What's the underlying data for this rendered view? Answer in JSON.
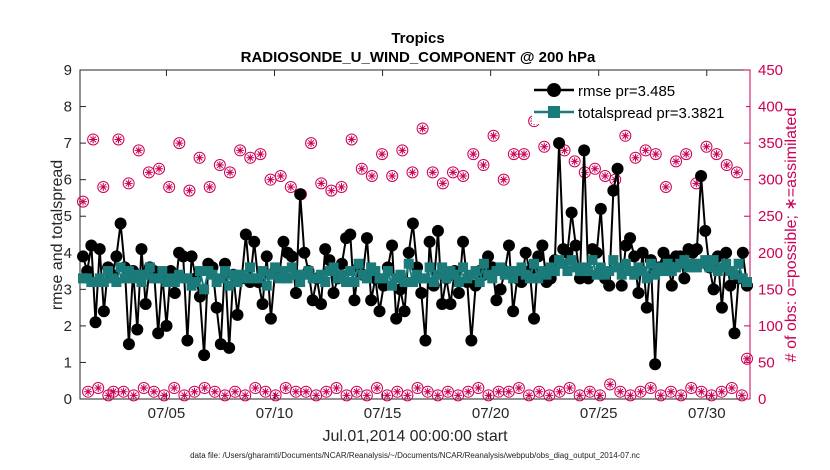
{
  "chart_data": {
    "type": "line",
    "title": "Tropics",
    "subtitle": "RADIOSONDE_U_WIND_COMPONENT @ 200 hPa",
    "xlabel": "Jul.01,2014 00:00:00 start",
    "ylabel": "rmse and totalspread",
    "ylabel_right": "# of obs: o=possible; ∗=assimilated",
    "x_ticklabels": [
      "07/05",
      "07/10",
      "07/15",
      "07/20",
      "07/25",
      "07/30"
    ],
    "x_tick_days": [
      5,
      10,
      15,
      20,
      25,
      30
    ],
    "xlim": [
      1,
      32
    ],
    "ylim": [
      0,
      9
    ],
    "ylim_right": [
      0,
      450
    ],
    "y_ticks": [
      0,
      1,
      2,
      3,
      4,
      5,
      6,
      7,
      8,
      9
    ],
    "y_ticks_right": [
      0,
      50,
      100,
      150,
      200,
      250,
      300,
      350,
      400,
      450
    ],
    "footer": "data file: /Users/gharamti/Documents/NCAR/Reanalysis/~/Documents/NCAR/Reanalysis/webpub/obs_diag_output_2014-07.nc",
    "series": [
      {
        "name": "rmse pr=3.485",
        "color": "#000000",
        "marker": "circle",
        "axis": "left",
        "values": [
          3.9,
          3.5,
          4.2,
          2.1,
          4.1,
          2.4,
          3.6,
          3.4,
          3.9,
          4.8,
          3.6,
          1.5,
          3.5,
          1.9,
          4.1,
          2.6,
          3.6,
          3.5,
          1.8,
          3.4,
          2.0,
          3.5,
          2.9,
          4.0,
          3.9,
          1.6,
          3.9,
          3.3,
          2.8,
          1.2,
          3.7,
          3.6,
          2.5,
          1.5,
          3.7,
          1.4,
          3.4,
          2.3,
          3.3,
          4.5,
          3.2,
          4.3,
          3.2,
          2.6,
          3.9,
          2.2,
          3.5,
          3.4,
          4.3,
          4.0,
          3.9,
          2.9,
          5.6,
          4.0,
          3.5,
          2.7,
          3.3,
          2.6,
          4.1,
          3.8,
          2.9,
          3.3,
          3.7,
          4.4,
          4.5,
          2.7,
          3.6,
          3.4,
          4.4,
          2.7,
          3.3,
          2.4,
          3.1,
          3.6,
          4.2,
          2.2,
          3.0,
          2.4,
          4.0,
          4.8,
          3.6,
          2.9,
          1.6,
          4.3,
          3.1,
          4.6,
          2.6,
          3.3,
          2.6,
          3.5,
          2.9,
          4.3,
          3.2,
          1.6,
          3.1,
          3.5,
          3.4,
          3.9,
          3.6,
          2.7,
          3.0,
          3.5,
          4.2,
          2.4,
          3.3,
          3.2,
          4.0,
          3.5,
          2.2,
          3.9,
          4.2,
          3.2,
          3.3,
          3.8,
          7.0,
          4.1,
          4.0,
          5.1,
          4.2,
          3.3,
          6.8,
          3.3,
          4.1,
          4.0,
          5.2,
          3.3,
          3.1,
          5.7,
          6.3,
          3.1,
          4.2,
          4.4,
          3.9,
          2.9,
          4.0,
          2.5,
          3.8,
          0.95,
          3.6,
          4.0,
          3.8,
          3.1,
          3.9,
          3.9,
          3.3,
          4.1,
          4.0,
          4.1,
          6.1,
          4.6,
          3.6,
          3.0,
          3.9,
          2.5,
          4.0,
          3.1,
          1.8,
          3.3,
          4.0,
          3.1
        ]
      },
      {
        "name": "totalspread pr=3.3821",
        "color": "#1b7a7a",
        "marker": "square",
        "axis": "left",
        "values": [
          3.3,
          3.3,
          3.2,
          3.2,
          3.3,
          3.2,
          3.5,
          3.3,
          3.2,
          3.6,
          3.3,
          3.5,
          3.3,
          3.4,
          3.2,
          3.4,
          3.6,
          3.3,
          3.3,
          3.5,
          3.2,
          3.3,
          3.2,
          3.4,
          3.3,
          3.3,
          3.1,
          3.2,
          3.5,
          3.0,
          3.5,
          3.4,
          3.2,
          3.3,
          3.5,
          3.1,
          3.4,
          3.2,
          3.4,
          3.3,
          3.6,
          3.3,
          3.3,
          3.5,
          3.1,
          3.4,
          3.6,
          3.3,
          3.5,
          3.3,
          3.6,
          3.4,
          3.2,
          3.4,
          3.5,
          3.3,
          3.3,
          3.4,
          3.2,
          3.5,
          3.6,
          3.3,
          3.4,
          3.2,
          3.5,
          3.2,
          3.7,
          3.4,
          3.3,
          3.6,
          3.5,
          3.3,
          3.3,
          3.5,
          3.1,
          3.3,
          3.4,
          3.2,
          3.7,
          3.2,
          3.4,
          3.3,
          3.3,
          3.6,
          3.2,
          3.4,
          3.6,
          3.3,
          3.5,
          3.4,
          3.2,
          3.6,
          3.3,
          3.4,
          3.5,
          3.2,
          3.7,
          3.4,
          3.3,
          3.5,
          3.6,
          3.4,
          3.5,
          3.3,
          3.5,
          3.6,
          3.4,
          3.3,
          3.7,
          3.3,
          3.5,
          3.4,
          3.6,
          3.5,
          3.8,
          3.7,
          3.5,
          3.8,
          3.6,
          3.5,
          3.6,
          3.5,
          3.8,
          3.4,
          3.6,
          3.4,
          3.5,
          3.8,
          3.6,
          3.4,
          3.7,
          3.5,
          3.4,
          3.6,
          3.5,
          3.3,
          3.7,
          3.4,
          3.6,
          3.5,
          3.7,
          3.5,
          3.6,
          3.7,
          3.8,
          3.6,
          3.7,
          3.6,
          3.7,
          3.8,
          3.6,
          3.8,
          3.5,
          3.6,
          3.7,
          3.5,
          3.4,
          3.7,
          3.3,
          3.2
        ]
      },
      {
        "name": "obs possible",
        "color": "#cc0055",
        "marker": "open-circle",
        "axis": "right",
        "values": [
          270,
          10,
          355,
          15,
          290,
          5,
          10,
          355,
          10,
          295,
          5,
          340,
          15,
          310,
          10,
          315,
          5,
          290,
          15,
          350,
          5,
          285,
          10,
          330,
          15,
          290,
          10,
          320,
          5,
          310,
          10,
          340,
          5,
          330,
          15,
          335,
          10,
          300,
          5,
          305,
          15,
          290,
          10,
          280,
          10,
          350,
          5,
          295,
          10,
          285,
          15,
          290,
          5,
          355,
          10,
          315,
          5,
          305,
          15,
          335,
          5,
          305,
          10,
          340,
          5,
          310,
          15,
          370,
          10,
          310,
          5,
          295,
          10,
          310,
          5,
          305,
          10,
          335,
          15,
          320,
          5,
          360,
          10,
          300,
          10,
          335,
          15,
          335,
          5,
          380,
          10,
          345,
          5,
          395,
          10,
          340,
          15,
          325,
          5,
          310,
          10,
          315,
          5,
          305,
          20,
          300,
          10,
          360,
          5,
          330,
          10,
          340,
          15,
          335,
          5,
          290,
          10,
          325,
          5,
          335,
          15,
          295,
          10,
          345,
          5,
          335,
          10,
          320,
          15,
          310,
          5,
          55
        ]
      }
    ]
  }
}
